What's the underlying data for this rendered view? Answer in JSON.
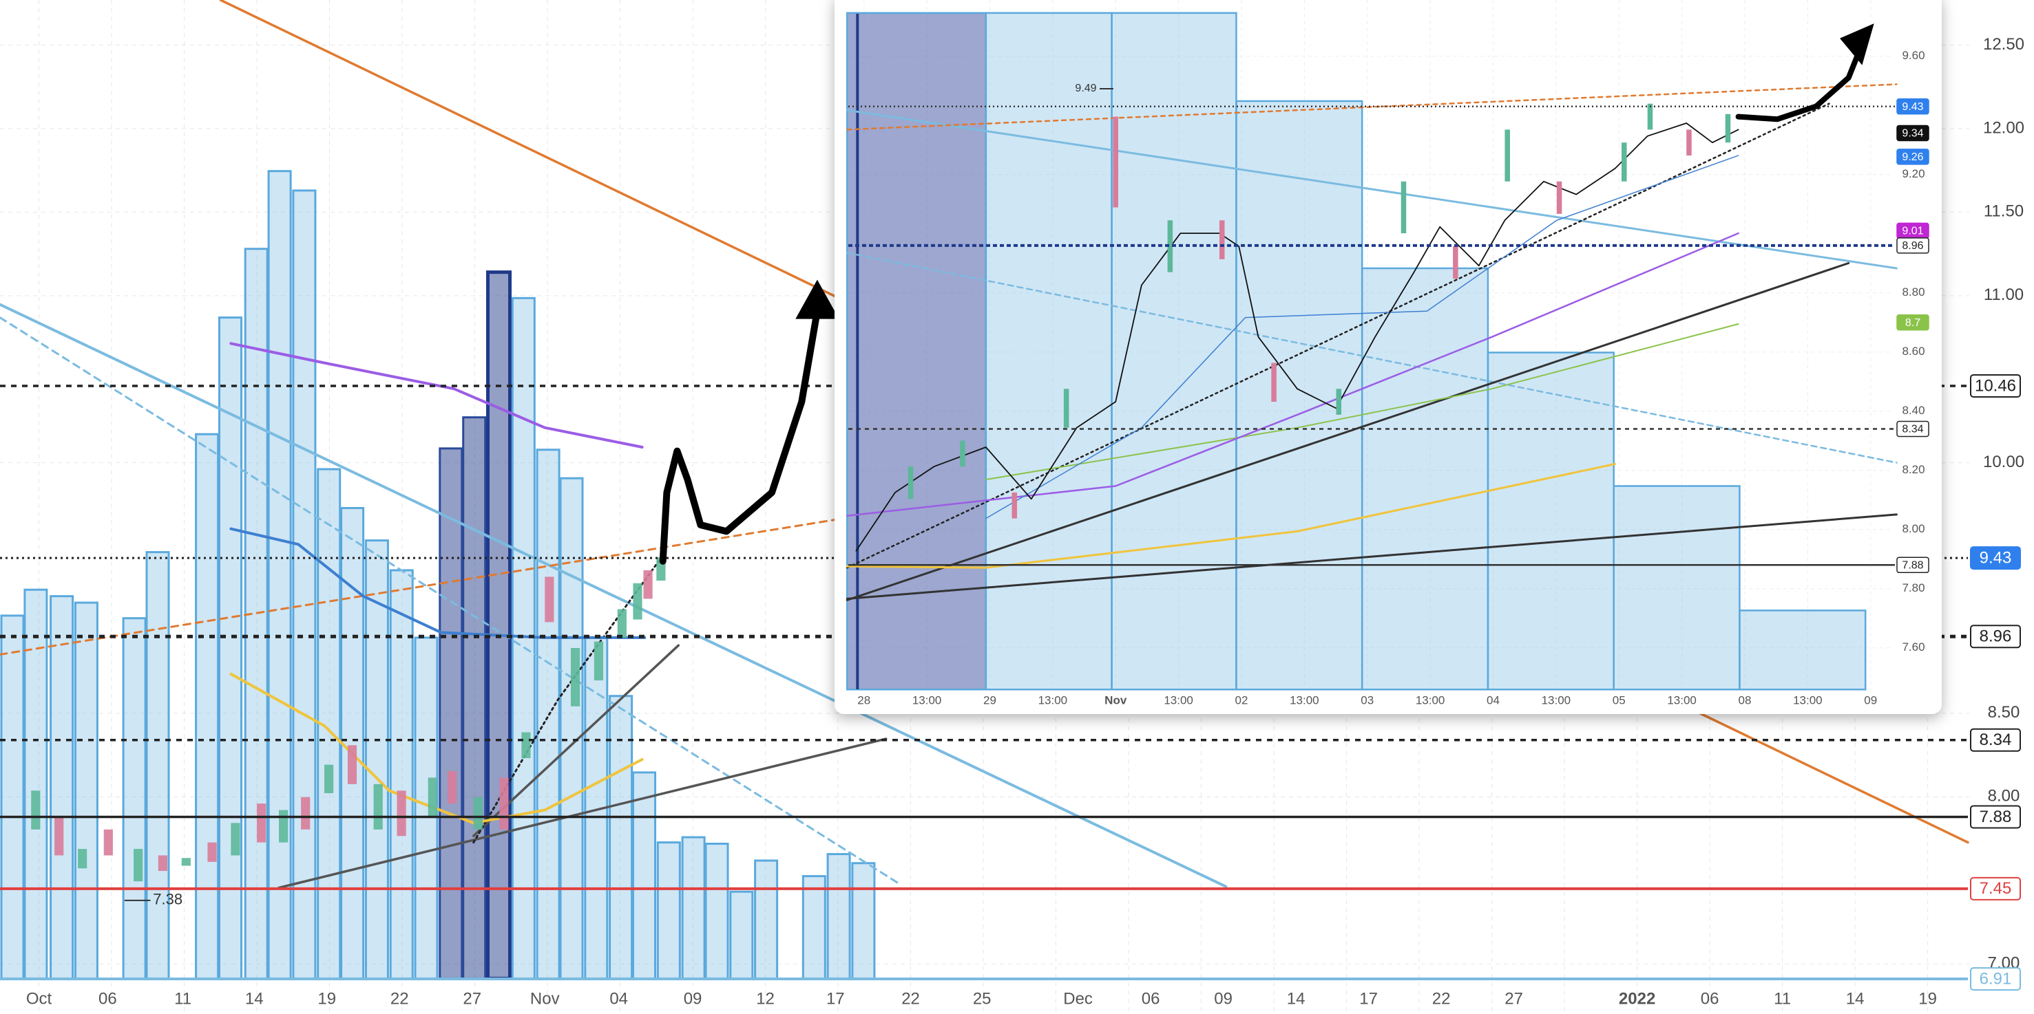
{
  "main_chart": {
    "ylim": [
      6.7,
      12.77
    ],
    "price_ticks": [
      {
        "value": 12.5,
        "label": "12.50"
      },
      {
        "value": 12,
        "label": "12.00"
      },
      {
        "value": 11.5,
        "label": "11.50"
      },
      {
        "value": 11,
        "label": "11.00"
      },
      {
        "value": 10,
        "label": "10.00"
      },
      {
        "value": 8.5,
        "label": "8.50"
      },
      {
        "value": 8,
        "label": "8.00"
      },
      {
        "value": 7,
        "label": "7.00"
      }
    ],
    "price_tags": [
      {
        "value": 10.46,
        "style": "boxed"
      },
      {
        "value": 9.43,
        "style": "blue"
      },
      {
        "value": 8.96,
        "style": "boxed"
      },
      {
        "value": 8.34,
        "style": "boxed"
      },
      {
        "value": 7.88,
        "style": "boxed"
      },
      {
        "value": 7.45,
        "style": "red"
      },
      {
        "value": 6.91,
        "style": "light"
      }
    ],
    "annotation": 7.38,
    "date_labels": [
      "Oct",
      "06",
      "11",
      "14",
      "19",
      "22",
      "27",
      "Nov",
      "04",
      "09",
      "12",
      "17",
      "22",
      "25",
      "Dec",
      "06",
      "09",
      "14",
      "17",
      "22",
      "27",
      "2022",
      "06",
      "11",
      "14",
      "19"
    ]
  },
  "inset_chart": {
    "ylim": [
      7.39,
      9.79
    ],
    "price_ticks": [
      {
        "value": 9.6,
        "label": "9.60"
      },
      {
        "value": 9.2,
        "label": "9.20"
      },
      {
        "value": 8.8,
        "label": "8.80"
      },
      {
        "value": 8.6,
        "label": "8.60"
      },
      {
        "value": 8.4,
        "label": "8.40"
      },
      {
        "value": 8.2,
        "label": "8.20"
      },
      {
        "value": 8,
        "label": "8.00"
      },
      {
        "value": 7.8,
        "label": "7.80"
      },
      {
        "value": 7.6,
        "label": "7.60"
      }
    ],
    "price_tags": [
      {
        "value": 9.43,
        "style": "blue"
      },
      {
        "value": 9.34,
        "style": "black"
      },
      {
        "value": 9.26,
        "style": "blue"
      },
      {
        "value": 9.01,
        "style": "magenta"
      },
      {
        "value": 8.96,
        "style": "boxed"
      },
      {
        "value": 8.7,
        "style": "green"
      },
      {
        "value": 8.34,
        "style": "boxed"
      },
      {
        "value": 7.88,
        "style": "boxed"
      }
    ],
    "annotation": 9.49,
    "date_labels": [
      "28",
      "13:00",
      "29",
      "13:00",
      "Nov",
      "13:00",
      "02",
      "13:00",
      "03",
      "13:00",
      "04",
      "13:00",
      "05",
      "13:00",
      "08",
      "13:00",
      "09"
    ]
  }
}
